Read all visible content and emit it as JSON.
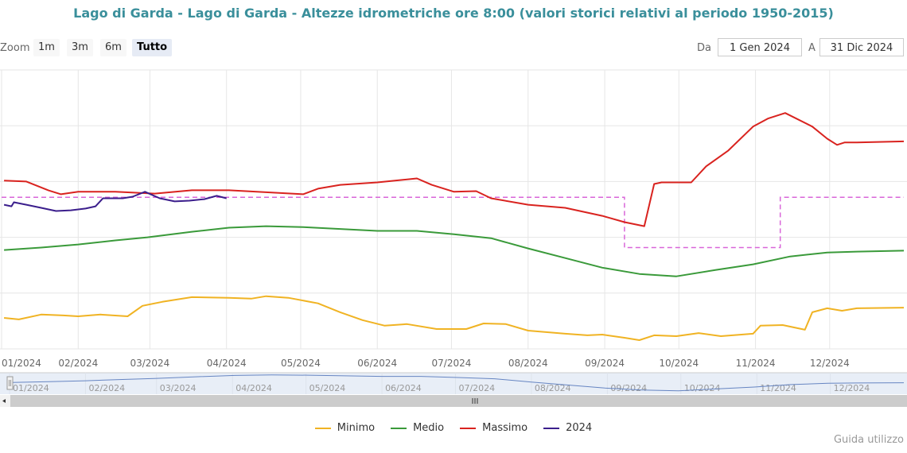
{
  "title": "Lago di Garda - Lago di Garda - Altezze idrometriche ore 8:00 (valori storici relativi al periodo 1950-2015)",
  "range_selector": {
    "zoom_label": "Zoom",
    "buttons": [
      {
        "label": "1m",
        "active": false
      },
      {
        "label": "3m",
        "active": false
      },
      {
        "label": "6m",
        "active": false
      },
      {
        "label": "Tutto",
        "active": true
      }
    ],
    "from_label": "Da",
    "from_value": "1 Gen 2024",
    "to_label": "A",
    "to_value": "31 Dic 2024"
  },
  "credits": "Guida utilizzo",
  "chart_data": {
    "type": "line",
    "title": "Lago di Garda - Lago di Garda - Altezze idrometriche ore 8:00 (valori storici relativi al periodo 1950-2015)",
    "xlabel": "",
    "ylabel": "",
    "x_unit": "day of year 2024",
    "xlim": [
      1,
      366
    ],
    "ylim": [
      0,
      125
    ],
    "y_note": "y-axis labels not visible; values are relative estimates",
    "grid": true,
    "legend_position": "bottom-center",
    "x_ticks": [
      {
        "day": 1,
        "label": "01/2024"
      },
      {
        "day": 32,
        "label": "02/2024"
      },
      {
        "day": 61,
        "label": "03/2024"
      },
      {
        "day": 92,
        "label": "04/2024"
      },
      {
        "day": 122,
        "label": "05/2024"
      },
      {
        "day": 153,
        "label": "06/2024"
      },
      {
        "day": 183,
        "label": "07/2024"
      },
      {
        "day": 214,
        "label": "08/2024"
      },
      {
        "day": 245,
        "label": "09/2024"
      },
      {
        "day": 275,
        "label": "10/2024"
      },
      {
        "day": 306,
        "label": "11/2024"
      },
      {
        "day": 336,
        "label": "12/2024"
      }
    ],
    "series": [
      {
        "name": "Minimo",
        "color": "#f0b323",
        "points": [
          [
            2,
            13.9
          ],
          [
            8,
            13.2
          ],
          [
            17,
            15.4
          ],
          [
            26,
            15
          ],
          [
            32,
            14.6
          ],
          [
            41,
            15.4
          ],
          [
            52,
            14.6
          ],
          [
            58,
            19.3
          ],
          [
            66,
            21.1
          ],
          [
            78,
            23.2
          ],
          [
            93,
            22.9
          ],
          [
            102,
            22.5
          ],
          [
            108,
            23.6
          ],
          [
            117,
            22.9
          ],
          [
            129,
            20.4
          ],
          [
            138,
            16.4
          ],
          [
            147,
            12.9
          ],
          [
            156,
            10.4
          ],
          [
            165,
            11.1
          ],
          [
            177,
            8.9
          ],
          [
            189,
            8.9
          ],
          [
            196,
            11.4
          ],
          [
            205,
            11.1
          ],
          [
            214,
            8.2
          ],
          [
            229,
            6.8
          ],
          [
            238,
            6.1
          ],
          [
            244,
            6.4
          ],
          [
            253,
            5
          ],
          [
            259,
            3.9
          ],
          [
            265,
            6.1
          ],
          [
            274,
            5.7
          ],
          [
            283,
            7.1
          ],
          [
            292,
            5.7
          ],
          [
            305,
            6.8
          ],
          [
            308,
            10.4
          ],
          [
            317,
            10.7
          ],
          [
            326,
            8.6
          ],
          [
            329,
            16.4
          ],
          [
            335,
            18.2
          ],
          [
            341,
            17.1
          ],
          [
            347,
            18.2
          ],
          [
            366,
            18.5
          ]
        ]
      },
      {
        "name": "Medio",
        "color": "#3a9a3a",
        "points": [
          [
            2,
            44.3
          ],
          [
            17,
            45.4
          ],
          [
            32,
            46.8
          ],
          [
            47,
            48.6
          ],
          [
            60,
            50
          ],
          [
            78,
            52.5
          ],
          [
            93,
            54.3
          ],
          [
            108,
            55
          ],
          [
            123,
            54.6
          ],
          [
            153,
            52.9
          ],
          [
            169,
            52.9
          ],
          [
            184,
            51.4
          ],
          [
            199,
            49.6
          ],
          [
            214,
            45
          ],
          [
            229,
            40.7
          ],
          [
            244,
            36.4
          ],
          [
            259,
            33.6
          ],
          [
            274,
            32.5
          ],
          [
            290,
            35.4
          ],
          [
            305,
            37.9
          ],
          [
            320,
            41.4
          ],
          [
            335,
            43.2
          ],
          [
            347,
            43.6
          ],
          [
            366,
            44
          ]
        ]
      },
      {
        "name": "Massimo",
        "color": "#d9231f",
        "points": [
          [
            2,
            75.4
          ],
          [
            11,
            75
          ],
          [
            20,
            71
          ],
          [
            25,
            69.3
          ],
          [
            32,
            70.4
          ],
          [
            47,
            70.4
          ],
          [
            63,
            69.6
          ],
          [
            78,
            71.1
          ],
          [
            93,
            71.1
          ],
          [
            123,
            69.3
          ],
          [
            129,
            71.8
          ],
          [
            138,
            73.5
          ],
          [
            153,
            74.6
          ],
          [
            169,
            76.4
          ],
          [
            175,
            73.5
          ],
          [
            184,
            70.4
          ],
          [
            193,
            70.7
          ],
          [
            199,
            67.5
          ],
          [
            214,
            64.6
          ],
          [
            229,
            63.2
          ],
          [
            244,
            59.6
          ],
          [
            253,
            56.8
          ],
          [
            261,
            55
          ],
          [
            265,
            73.9
          ],
          [
            268,
            74.6
          ],
          [
            280,
            74.6
          ],
          [
            286,
            81.8
          ],
          [
            295,
            88.9
          ],
          [
            305,
            99.6
          ],
          [
            311,
            103.2
          ],
          [
            318,
            105.7
          ],
          [
            329,
            99.6
          ],
          [
            335,
            94.2
          ],
          [
            339,
            91.4
          ],
          [
            342,
            92.5
          ],
          [
            347,
            92.5
          ],
          [
            366,
            93
          ]
        ]
      },
      {
        "name": "2024",
        "color": "#3b1e8c",
        "points": [
          [
            2,
            64.6
          ],
          [
            5,
            63.9
          ],
          [
            6,
            65.7
          ],
          [
            11,
            64.6
          ],
          [
            17,
            63.2
          ],
          [
            23,
            61.8
          ],
          [
            29,
            62.1
          ],
          [
            35,
            62.9
          ],
          [
            39,
            63.9
          ],
          [
            42,
            67.5
          ],
          [
            50,
            67.5
          ],
          [
            54,
            68.2
          ],
          [
            59,
            70.4
          ],
          [
            65,
            67.5
          ],
          [
            71,
            66.1
          ],
          [
            77,
            66.4
          ],
          [
            83,
            67.1
          ],
          [
            88,
            68.6
          ],
          [
            92,
            67.5
          ]
        ]
      }
    ],
    "reference_line": {
      "color": "#d966d9",
      "style": "dashed",
      "steps": [
        [
          1,
          67.9
        ],
        [
          253,
          67.9
        ],
        [
          253,
          45.4
        ],
        [
          316,
          45.4
        ],
        [
          316,
          67.9
        ],
        [
          366,
          67.9
        ]
      ]
    }
  }
}
